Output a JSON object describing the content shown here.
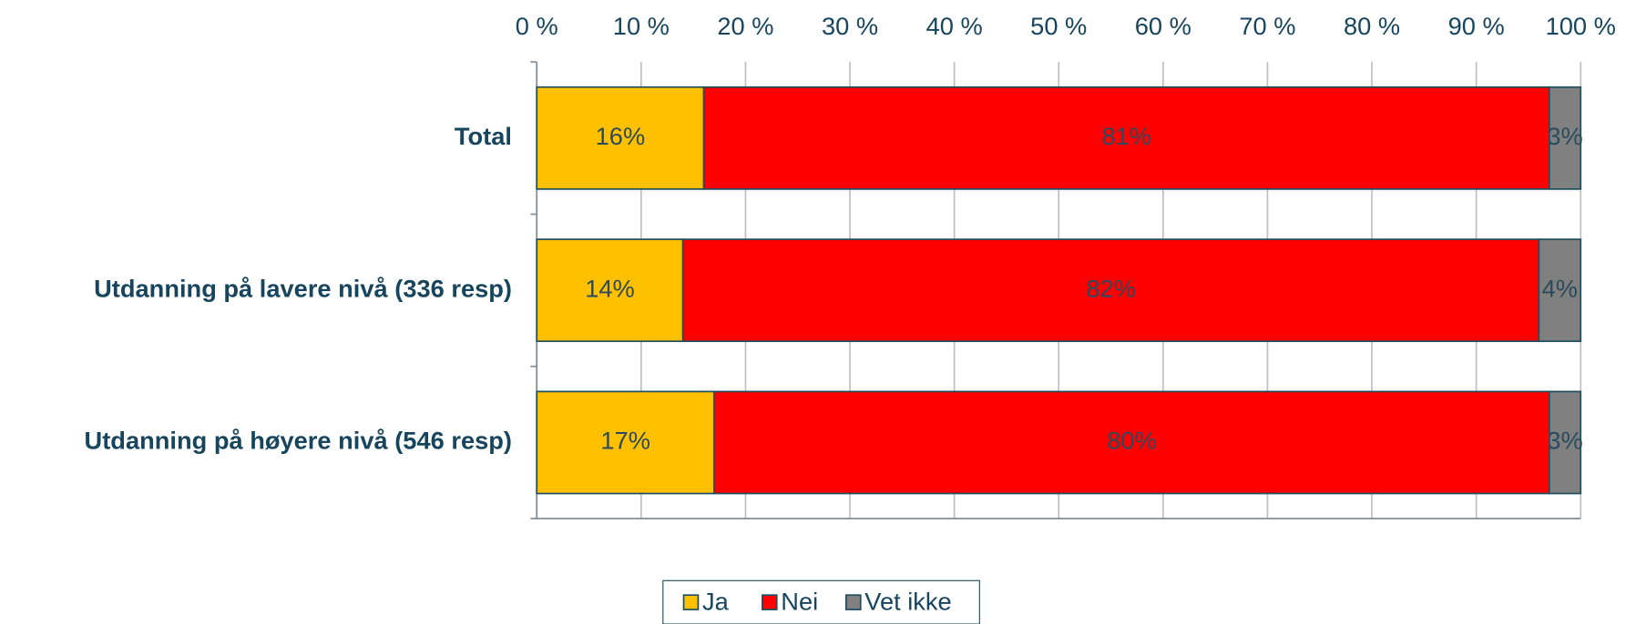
{
  "chart_data": {
    "type": "stacked_barh",
    "categories": [
      "Total",
      "Utdanning på lavere nivå (336 resp)",
      "Utdanning på høyere nivå (546 resp)"
    ],
    "series": [
      {
        "name": "Ja",
        "color": "#ffc000",
        "values": [
          16,
          14,
          17
        ],
        "value_labels": [
          "16%",
          "14%",
          "17%"
        ]
      },
      {
        "name": "Nei",
        "color": "#ff0000",
        "values": [
          81,
          82,
          80
        ],
        "value_labels": [
          "81%",
          "82%",
          "80%"
        ]
      },
      {
        "name": "Vet ikke",
        "color": "#808080",
        "values": [
          3,
          4,
          3
        ],
        "value_labels": [
          "3%",
          "4%",
          "3%"
        ]
      }
    ],
    "xlim": [
      0,
      100
    ],
    "xticks": [
      {
        "value": 0,
        "label": "0 %"
      },
      {
        "value": 10,
        "label": "10 %"
      },
      {
        "value": 20,
        "label": "20 %"
      },
      {
        "value": 30,
        "label": "30 %"
      },
      {
        "value": 40,
        "label": "40 %"
      },
      {
        "value": 50,
        "label": "50 %"
      },
      {
        "value": 60,
        "label": "60 %"
      },
      {
        "value": 70,
        "label": "70 %"
      },
      {
        "value": 80,
        "label": "80 %"
      },
      {
        "value": 90,
        "label": "90 %"
      },
      {
        "value": 100,
        "label": "100 %"
      }
    ],
    "grid": true,
    "legend": "bottom"
  }
}
